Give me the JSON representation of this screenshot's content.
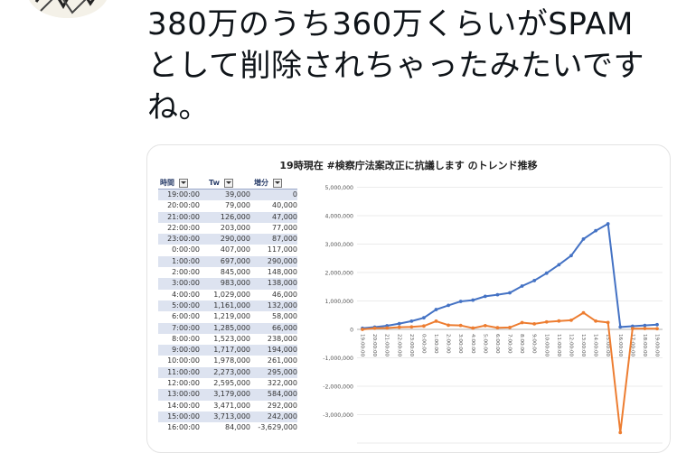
{
  "tweet": {
    "text": "380万のうち360万くらいがSPAM\nとして削除されちゃったみたいです\nね。"
  },
  "table": {
    "headers": [
      "時間",
      "Tw",
      "増分"
    ],
    "rows": [
      [
        "19:00:00",
        "39,000",
        "0"
      ],
      [
        "20:00:00",
        "79,000",
        "40,000"
      ],
      [
        "21:00:00",
        "126,000",
        "47,000"
      ],
      [
        "22:00:00",
        "203,000",
        "77,000"
      ],
      [
        "23:00:00",
        "290,000",
        "87,000"
      ],
      [
        "0:00:00",
        "407,000",
        "117,000"
      ],
      [
        "1:00:00",
        "697,000",
        "290,000"
      ],
      [
        "2:00:00",
        "845,000",
        "148,000"
      ],
      [
        "3:00:00",
        "983,000",
        "138,000"
      ],
      [
        "4:00:00",
        "1,029,000",
        "46,000"
      ],
      [
        "5:00:00",
        "1,161,000",
        "132,000"
      ],
      [
        "6:00:00",
        "1,219,000",
        "58,000"
      ],
      [
        "7:00:00",
        "1,285,000",
        "66,000"
      ],
      [
        "8:00:00",
        "1,523,000",
        "238,000"
      ],
      [
        "9:00:00",
        "1,717,000",
        "194,000"
      ],
      [
        "10:00:00",
        "1,978,000",
        "261,000"
      ],
      [
        "11:00:00",
        "2,273,000",
        "295,000"
      ],
      [
        "12:00:00",
        "2,595,000",
        "322,000"
      ],
      [
        "13:00:00",
        "3,179,000",
        "584,000"
      ],
      [
        "14:00:00",
        "3,471,000",
        "292,000"
      ],
      [
        "15:00:00",
        "3,713,000",
        "242,000"
      ],
      [
        "16:00:00",
        "84,000",
        "-3,629,000"
      ]
    ]
  },
  "chart_data": {
    "type": "line",
    "title": "19時現在 #検察庁法案改正に抗議します のトレンド推移",
    "categories": [
      "19:00:00",
      "20:00:00",
      "21:00:00",
      "22:00:00",
      "23:00:00",
      "0:00:00",
      "1:00:00",
      "2:00:00",
      "3:00:00",
      "4:00:00",
      "5:00:00",
      "6:00:00",
      "7:00:00",
      "8:00:00",
      "9:00:00",
      "10:00:00",
      "11:00:00",
      "12:00:00",
      "13:00:00",
      "14:00:00",
      "15:00:00",
      "16:00:00",
      "17:00:00",
      "18:00:00",
      "19:00:00"
    ],
    "series": [
      {
        "color": "#4472c4",
        "values": [
          39000,
          79000,
          126000,
          203000,
          290000,
          407000,
          697000,
          845000,
          983000,
          1029000,
          1161000,
          1219000,
          1285000,
          1523000,
          1717000,
          1978000,
          2273000,
          2595000,
          3179000,
          3471000,
          3713000,
          84000,
          110000,
          140000,
          165000
        ]
      },
      {
        "color": "#ed7d31",
        "values": [
          0,
          40000,
          47000,
          77000,
          87000,
          117000,
          290000,
          148000,
          138000,
          46000,
          132000,
          58000,
          66000,
          238000,
          194000,
          261000,
          295000,
          322000,
          584000,
          292000,
          242000,
          -3629000,
          26000,
          30000,
          25000
        ]
      }
    ],
    "yticks": [
      "4,000,000",
      "3,000,000",
      "2,000,000",
      "1,000,000",
      "0",
      "-1,000,000",
      "-2,000,000",
      "-3,000,000"
    ],
    "ylim": [
      -4000000,
      5000000
    ],
    "grid": true
  }
}
